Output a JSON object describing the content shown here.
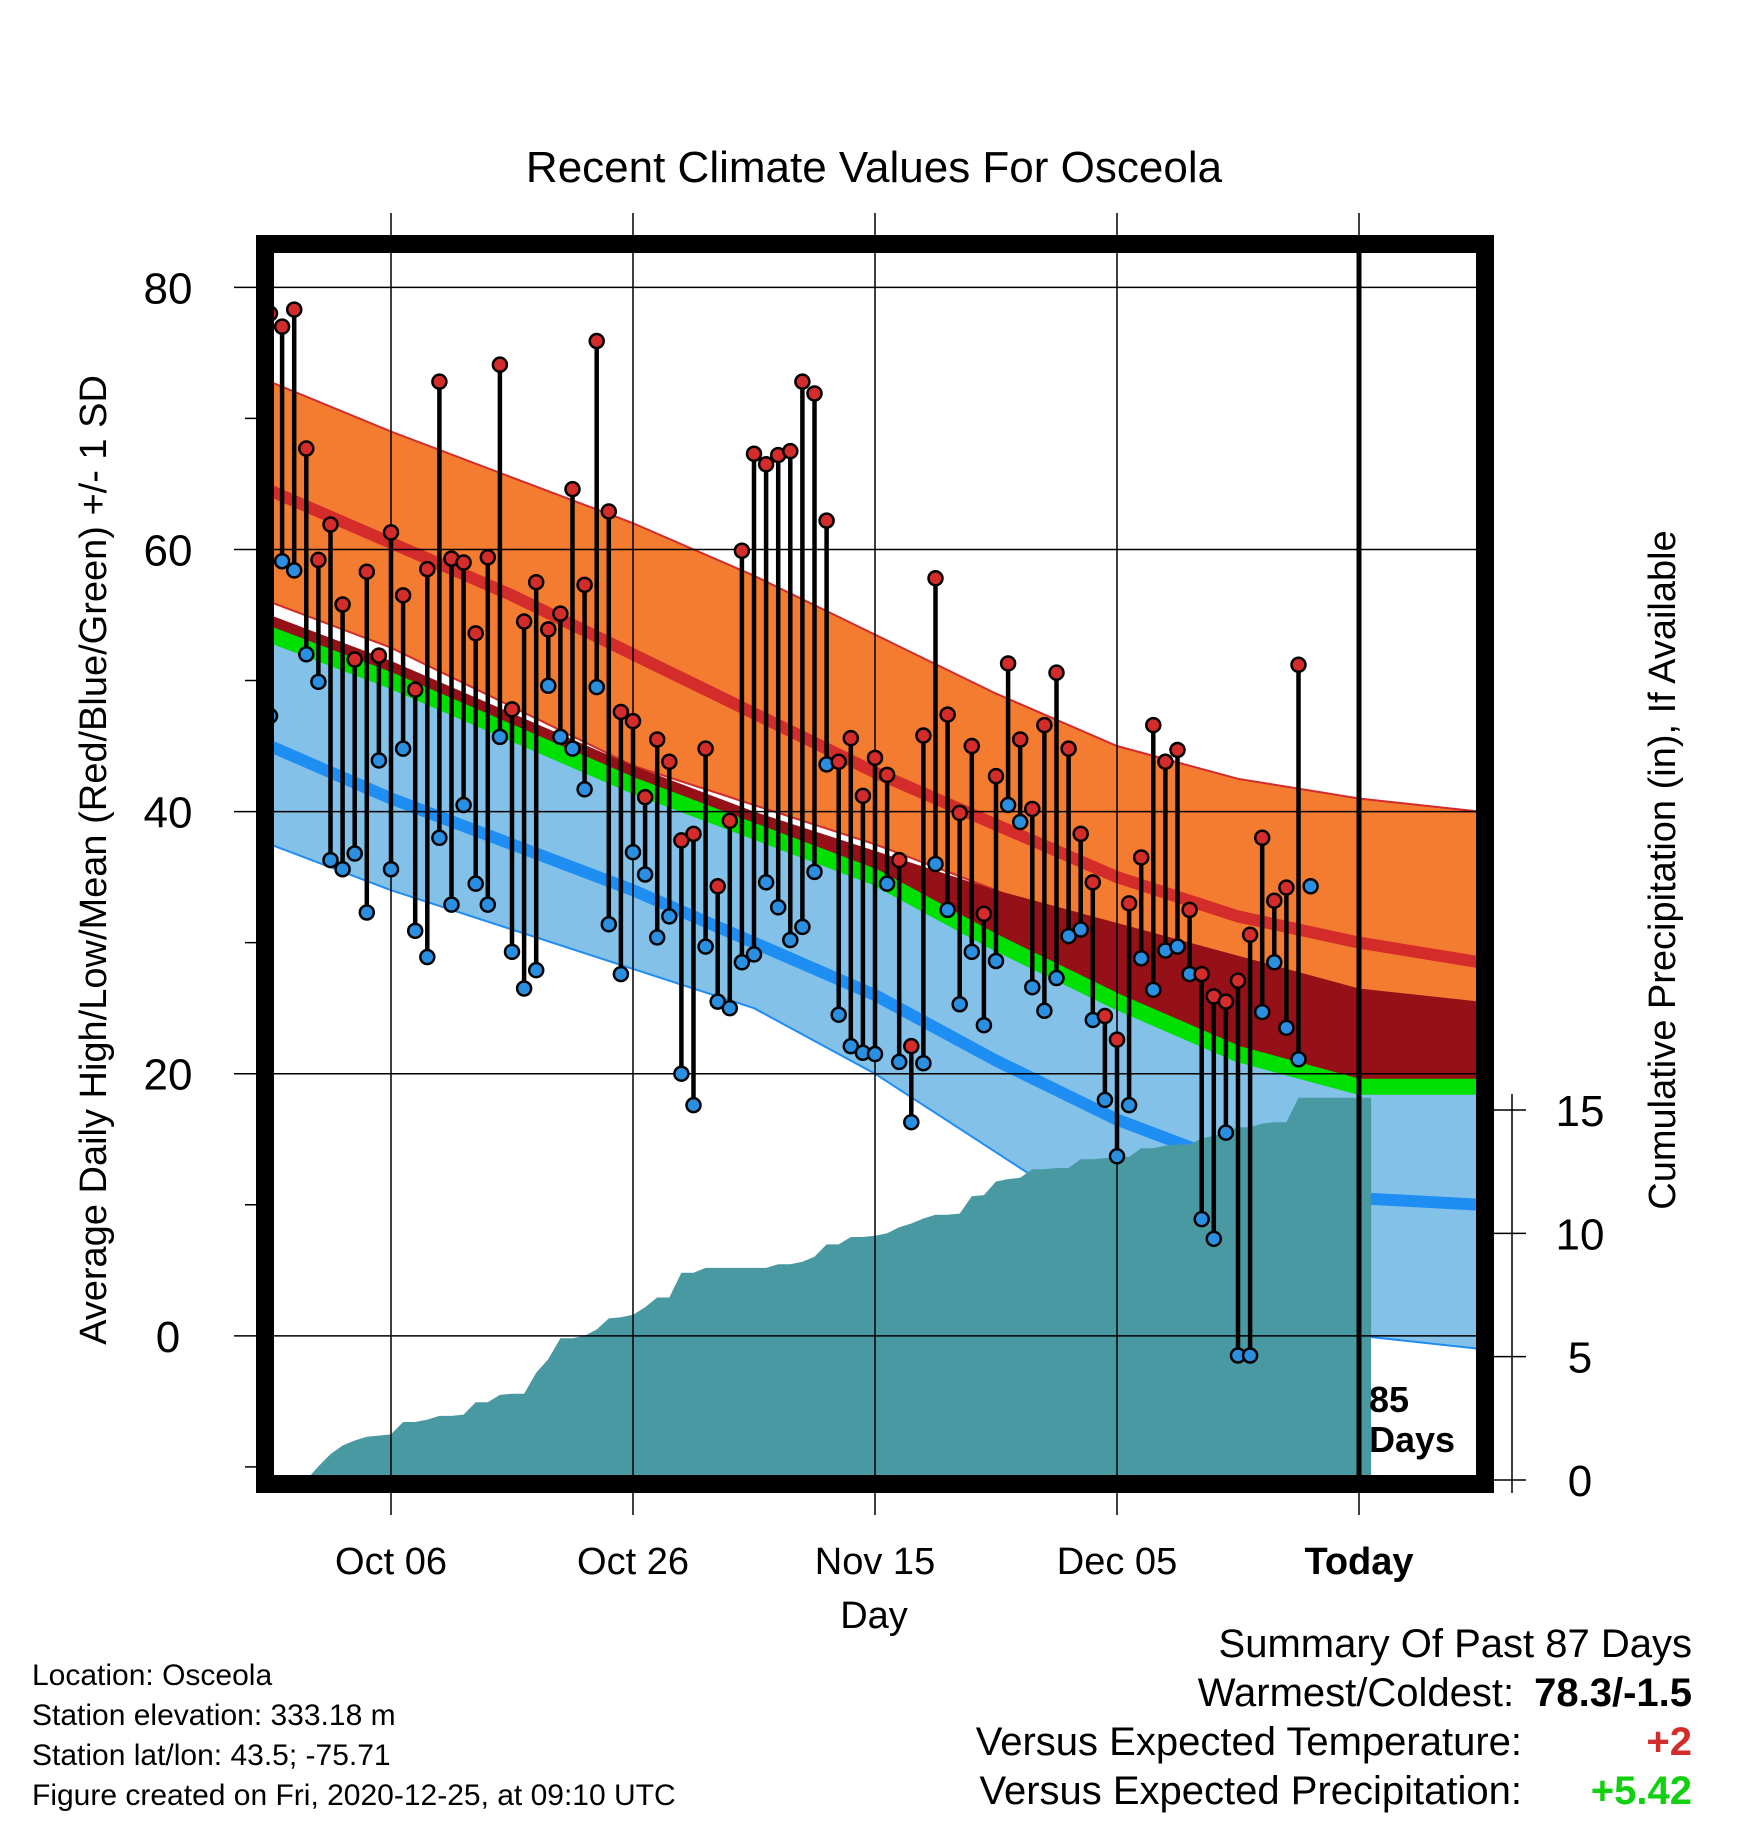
{
  "chart_data": {
    "type": "line",
    "title": "Recent Climate Values For Osceola",
    "xlabel": "Day",
    "ylabel": "Average Daily High/Low/Mean (Red/Blue/Green) +/- 1 SD",
    "y2label": "Cumulative Precipitation (in), If Available",
    "x_ticks": [
      "Oct 06",
      "Oct 26",
      "Nov 15",
      "Dec 05",
      "Today"
    ],
    "x_tick_days": [
      10,
      30,
      50,
      70,
      90
    ],
    "xlim": [
      0,
      100
    ],
    "ylim": [
      -11,
      83
    ],
    "y_ticks": [
      0,
      20,
      40,
      60,
      80
    ],
    "y2lim": [
      0,
      16
    ],
    "y2_ticks": [
      0,
      5,
      10,
      15
    ],
    "today_day": 90,
    "days_label": [
      "85",
      "Days"
    ],
    "normals_days": [
      0,
      10,
      20,
      30,
      40,
      50,
      60,
      70,
      80,
      90,
      100
    ],
    "normal_high": [
      64.5,
      60.5,
      56.5,
      52.0,
      47.5,
      43.0,
      39.0,
      35.0,
      32.0,
      30.0,
      28.5
    ],
    "normal_high_upper": [
      72.8,
      69.0,
      65.5,
      62.0,
      58.0,
      53.5,
      49.0,
      45.0,
      42.5,
      41.0,
      40.0
    ],
    "normal_high_lower": [
      56.0,
      52.5,
      48.0,
      43.5,
      40.5,
      37.5,
      34.0,
      30.0,
      26.5,
      22.5,
      20.0
    ],
    "normal_mean": [
      53.5,
      50.0,
      46.0,
      42.0,
      38.5,
      35.0,
      30.0,
      25.5,
      21.5,
      19.0,
      19.0
    ],
    "normal_mean_upper": [
      55.0,
      51.5,
      47.5,
      43.5,
      40.0,
      37.0,
      34.0,
      31.5,
      29.0,
      26.5,
      25.5
    ],
    "normal_low": [
      45.0,
      41.0,
      37.5,
      34.0,
      30.0,
      26.0,
      21.0,
      16.5,
      13.0,
      10.5,
      10.0
    ],
    "normal_low_lower": [
      37.5,
      34.0,
      31.0,
      28.0,
      25.0,
      20.0,
      14.0,
      8.0,
      3.0,
      0.0,
      -1.0
    ],
    "highs": [
      [
        0,
        78.0
      ],
      [
        1,
        77.0
      ],
      [
        2,
        78.3
      ],
      [
        3,
        67.7
      ],
      [
        4,
        59.2
      ],
      [
        5,
        61.9
      ],
      [
        6,
        55.8
      ],
      [
        7,
        51.6
      ],
      [
        8,
        58.3
      ],
      [
        9,
        51.9
      ],
      [
        10,
        61.3
      ],
      [
        11,
        56.5
      ],
      [
        12,
        49.3
      ],
      [
        13,
        58.5
      ],
      [
        14,
        72.8
      ],
      [
        15,
        59.3
      ],
      [
        16,
        59.0
      ],
      [
        17,
        53.6
      ],
      [
        18,
        59.4
      ],
      [
        19,
        74.1
      ],
      [
        20,
        47.8
      ],
      [
        21,
        54.5
      ],
      [
        22,
        57.5
      ],
      [
        23,
        53.9
      ],
      [
        24,
        55.1
      ],
      [
        25,
        64.6
      ],
      [
        26,
        57.3
      ],
      [
        27,
        75.9
      ],
      [
        28,
        62.9
      ],
      [
        29,
        47.6
      ],
      [
        30,
        46.9
      ],
      [
        31,
        41.1
      ],
      [
        32,
        45.5
      ],
      [
        33,
        43.8
      ],
      [
        34,
        37.8
      ],
      [
        35,
        38.3
      ],
      [
        36,
        44.8
      ],
      [
        37,
        34.3
      ],
      [
        38,
        39.3
      ],
      [
        39,
        59.9
      ],
      [
        40,
        67.3
      ],
      [
        41,
        66.5
      ],
      [
        42,
        67.2
      ],
      [
        43,
        67.5
      ],
      [
        44,
        72.8
      ],
      [
        45,
        71.9
      ],
      [
        46,
        62.2
      ],
      [
        47,
        43.8
      ],
      [
        48,
        45.6
      ],
      [
        49,
        41.2
      ],
      [
        50,
        44.1
      ],
      [
        51,
        42.8
      ],
      [
        52,
        36.3
      ],
      [
        53,
        22.1
      ],
      [
        54,
        45.8
      ],
      [
        55,
        57.8
      ],
      [
        56,
        47.4
      ],
      [
        57,
        39.9
      ],
      [
        58,
        45.0
      ],
      [
        59,
        32.2
      ],
      [
        60,
        42.7
      ],
      [
        61,
        51.3
      ],
      [
        62,
        45.5
      ],
      [
        63,
        40.2
      ],
      [
        64,
        46.6
      ],
      [
        65,
        50.6
      ],
      [
        66,
        44.8
      ],
      [
        67,
        38.3
      ],
      [
        68,
        34.6
      ],
      [
        69,
        24.4
      ],
      [
        70,
        22.6
      ],
      [
        71,
        33.0
      ],
      [
        72,
        36.5
      ],
      [
        73,
        46.6
      ],
      [
        74,
        43.8
      ],
      [
        75,
        44.7
      ],
      [
        76,
        32.5
      ],
      [
        77,
        27.6
      ],
      [
        78,
        25.9
      ],
      [
        79,
        25.5
      ],
      [
        80,
        27.1
      ],
      [
        81,
        30.6
      ],
      [
        82,
        38.0
      ],
      [
        83,
        33.2
      ],
      [
        84,
        34.2
      ],
      [
        85,
        51.2
      ]
    ],
    "lows": [
      [
        0,
        47.3
      ],
      [
        1,
        59.1
      ],
      [
        2,
        58.4
      ],
      [
        3,
        52.0
      ],
      [
        4,
        49.9
      ],
      [
        5,
        36.3
      ],
      [
        6,
        35.6
      ],
      [
        7,
        36.8
      ],
      [
        8,
        32.3
      ],
      [
        9,
        43.9
      ],
      [
        10,
        35.6
      ],
      [
        11,
        44.8
      ],
      [
        12,
        30.9
      ],
      [
        13,
        28.9
      ],
      [
        14,
        38.0
      ],
      [
        15,
        32.9
      ],
      [
        16,
        40.5
      ],
      [
        17,
        34.5
      ],
      [
        18,
        32.9
      ],
      [
        19,
        45.7
      ],
      [
        20,
        29.3
      ],
      [
        21,
        26.5
      ],
      [
        22,
        27.9
      ],
      [
        23,
        49.6
      ],
      [
        24,
        45.7
      ],
      [
        25,
        44.8
      ],
      [
        26,
        41.7
      ],
      [
        27,
        49.5
      ],
      [
        28,
        31.4
      ],
      [
        29,
        27.6
      ],
      [
        30,
        36.9
      ],
      [
        31,
        35.2
      ],
      [
        32,
        30.4
      ],
      [
        33,
        32.0
      ],
      [
        34,
        20.0
      ],
      [
        35,
        17.6
      ],
      [
        36,
        29.7
      ],
      [
        37,
        25.5
      ],
      [
        38,
        25.0
      ],
      [
        39,
        28.5
      ],
      [
        40,
        29.1
      ],
      [
        41,
        34.6
      ],
      [
        42,
        32.7
      ],
      [
        43,
        30.2
      ],
      [
        44,
        31.2
      ],
      [
        45,
        35.4
      ],
      [
        46,
        43.6
      ],
      [
        47,
        24.5
      ],
      [
        48,
        22.1
      ],
      [
        49,
        21.6
      ],
      [
        50,
        21.5
      ],
      [
        51,
        34.5
      ],
      [
        52,
        20.9
      ],
      [
        53,
        16.3
      ],
      [
        54,
        20.8
      ],
      [
        55,
        36.0
      ],
      [
        56,
        32.5
      ],
      [
        57,
        25.3
      ],
      [
        58,
        29.3
      ],
      [
        59,
        23.7
      ],
      [
        60,
        28.6
      ],
      [
        61,
        40.5
      ],
      [
        62,
        39.2
      ],
      [
        63,
        26.6
      ],
      [
        64,
        24.8
      ],
      [
        65,
        27.3
      ],
      [
        66,
        30.5
      ],
      [
        67,
        31.0
      ],
      [
        68,
        24.1
      ],
      [
        69,
        18.0
      ],
      [
        70,
        13.7
      ],
      [
        71,
        17.6
      ],
      [
        72,
        28.8
      ],
      [
        73,
        26.4
      ],
      [
        74,
        29.4
      ],
      [
        75,
        29.7
      ],
      [
        76,
        27.6
      ],
      [
        77,
        8.9
      ],
      [
        78,
        7.4
      ],
      [
        79,
        15.5
      ],
      [
        80,
        -1.5
      ],
      [
        81,
        -1.5
      ],
      [
        82,
        24.7
      ],
      [
        83,
        28.5
      ],
      [
        84,
        23.5
      ],
      [
        85,
        21.1
      ],
      [
        86,
        34.3
      ]
    ],
    "precip_cumulative": [
      [
        0,
        0.0
      ],
      [
        3,
        0.0
      ],
      [
        4,
        0.55
      ],
      [
        5,
        1.05
      ],
      [
        6,
        1.4
      ],
      [
        7,
        1.6
      ],
      [
        8,
        1.75
      ],
      [
        9,
        1.8
      ],
      [
        10,
        1.85
      ],
      [
        11,
        2.35
      ],
      [
        12,
        2.35
      ],
      [
        13,
        2.45
      ],
      [
        14,
        2.6
      ],
      [
        15,
        2.6
      ],
      [
        16,
        2.65
      ],
      [
        17,
        3.15
      ],
      [
        18,
        3.15
      ],
      [
        19,
        3.45
      ],
      [
        20,
        3.5
      ],
      [
        21,
        3.5
      ],
      [
        22,
        4.35
      ],
      [
        23,
        4.9
      ],
      [
        24,
        5.75
      ],
      [
        25,
        5.75
      ],
      [
        26,
        5.85
      ],
      [
        27,
        6.1
      ],
      [
        28,
        6.55
      ],
      [
        29,
        6.6
      ],
      [
        30,
        6.7
      ],
      [
        31,
        7.0
      ],
      [
        32,
        7.4
      ],
      [
        33,
        7.4
      ],
      [
        34,
        8.4
      ],
      [
        35,
        8.4
      ],
      [
        36,
        8.6
      ],
      [
        37,
        8.6
      ],
      [
        38,
        8.6
      ],
      [
        39,
        8.6
      ],
      [
        40,
        8.6
      ],
      [
        41,
        8.6
      ],
      [
        42,
        8.75
      ],
      [
        43,
        8.75
      ],
      [
        44,
        8.85
      ],
      [
        45,
        9.05
      ],
      [
        46,
        9.55
      ],
      [
        47,
        9.55
      ],
      [
        48,
        9.85
      ],
      [
        49,
        9.85
      ],
      [
        50,
        9.9
      ],
      [
        51,
        10.0
      ],
      [
        52,
        10.25
      ],
      [
        53,
        10.4
      ],
      [
        54,
        10.6
      ],
      [
        55,
        10.75
      ],
      [
        56,
        10.75
      ],
      [
        57,
        10.8
      ],
      [
        58,
        11.5
      ],
      [
        59,
        11.55
      ],
      [
        60,
        12.1
      ],
      [
        61,
        12.2
      ],
      [
        62,
        12.25
      ],
      [
        63,
        12.6
      ],
      [
        64,
        12.6
      ],
      [
        65,
        12.65
      ],
      [
        66,
        12.65
      ],
      [
        67,
        13.0
      ],
      [
        68,
        13.0
      ],
      [
        69,
        13.05
      ],
      [
        70,
        13.1
      ],
      [
        71,
        13.1
      ],
      [
        72,
        13.45
      ],
      [
        73,
        13.45
      ],
      [
        74,
        13.55
      ],
      [
        75,
        13.6
      ],
      [
        76,
        13.6
      ],
      [
        77,
        13.85
      ],
      [
        78,
        13.95
      ],
      [
        79,
        14.1
      ],
      [
        80,
        14.3
      ],
      [
        81,
        14.3
      ],
      [
        82,
        14.45
      ],
      [
        83,
        14.5
      ],
      [
        84,
        14.5
      ],
      [
        85,
        15.5
      ],
      [
        86,
        15.5
      ],
      [
        87,
        15.5
      ],
      [
        88,
        15.5
      ],
      [
        89,
        15.5
      ],
      [
        90,
        15.5
      ],
      [
        91,
        15.5
      ]
    ],
    "colors": {
      "high_band": "#f47c30",
      "high_line": "#d42b2b",
      "mean_band": "#00e000",
      "mean_upper_band": "#951017",
      "low_band": "#83c1e8",
      "low_line": "#1f8ef2",
      "precip": "#4899a2",
      "high_marker": "#d42b2b",
      "low_marker": "#2a8fe0"
    }
  },
  "footer": {
    "location": "Location: Osceola",
    "elevation": "Station elevation: 333.18 m",
    "latlon": "Station lat/lon: 43.5; -75.71",
    "created": "Figure created on Fri, 2020-12-25, at 09:10 UTC"
  },
  "summary": {
    "title": "Summary Of Past 87 Days",
    "warmest_coldest_label": "Warmest/Coldest:",
    "warmest_coldest_value": "78.3/-1.5",
    "temp_label": "Versus Expected Temperature:",
    "temp_value": "+2",
    "temp_color": "#d42b2b",
    "precip_label": "Versus Expected Precipitation:",
    "precip_value": "+5.42",
    "precip_color": "#10d010"
  }
}
